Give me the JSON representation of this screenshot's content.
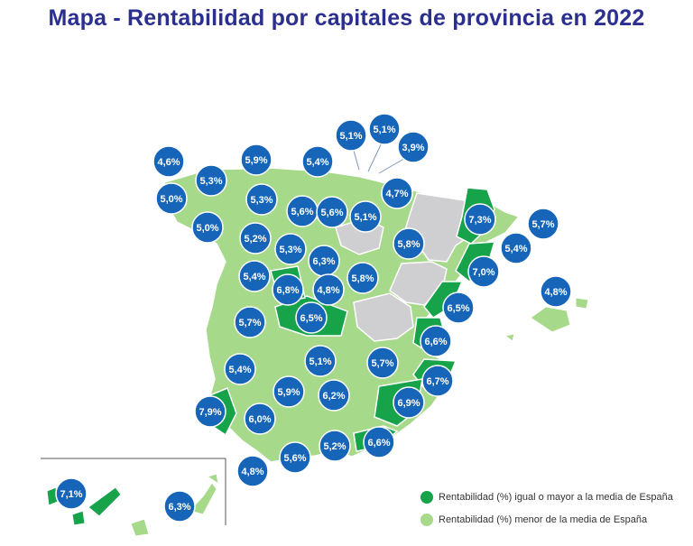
{
  "title": "Mapa - Rentabilidad por capitales de provincia en 2022",
  "colors": {
    "above_avg": "#16a34a",
    "below_avg": "#a6d98a",
    "no_data": "#cfcfd2",
    "bubble": "#1665b8"
  },
  "legend": [
    {
      "label": "Rentabilidad (%) igual o mayor a la media de España",
      "color": "#16a34a"
    },
    {
      "label": "Rentabilidad (%) menor de la media de España",
      "color": "#a6d98a"
    }
  ],
  "values": [
    "4,6%",
    "5,9%",
    "5,4%",
    "5,1%",
    "5,1%",
    "3,9%",
    "5,3%",
    "5,0%",
    "5,3%",
    "5,6%",
    "5,6%",
    "5,1%",
    "4,7%",
    "7,3%",
    "5,7%",
    "5,0%",
    "5,2%",
    "5,3%",
    "5,8%",
    "5,4%",
    "6,3%",
    "7,0%",
    "5,4%",
    "6,8%",
    "4,8%",
    "5,8%",
    "4,8%",
    "6,5%",
    "6,5%",
    "5,7%",
    "6,6%",
    "5,4%",
    "5,1%",
    "5,7%",
    "6,7%",
    "5,9%",
    "6,2%",
    "6,9%",
    "7,9%",
    "6,0%",
    "5,6%",
    "5,2%",
    "6,6%",
    "4,8%",
    "7,1%",
    "6,3%"
  ]
}
